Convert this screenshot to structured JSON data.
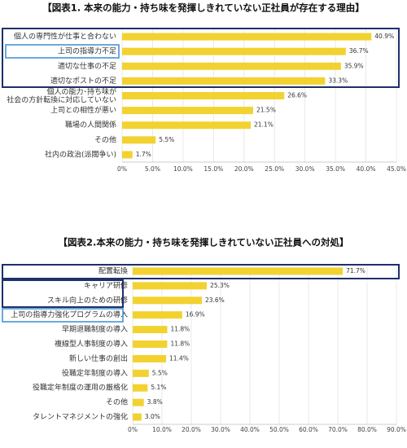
{
  "chart_data": [
    {
      "type": "bar",
      "orientation": "horizontal",
      "title": "【図表1. 本来の能力・持ち味を発揮しきれていない正社員が存在する理由】",
      "categories": [
        "個人の専門性が仕事と合わない",
        "上司の指導力不足",
        "適切な仕事の不足",
        "適切なポストの不足",
        "個人の能力･持ち味が\n社会の方針転換に対応していない",
        "上司との相性が悪い",
        "職場の人間関係",
        "その他",
        "社内の政治(派閥争い)"
      ],
      "values": [
        40.9,
        36.7,
        35.9,
        33.3,
        26.6,
        21.5,
        21.1,
        5.5,
        1.7
      ],
      "value_labels": [
        "40.9%",
        "36.7%",
        "35.9%",
        "33.3%",
        "26.6%",
        "21.5%",
        "21.1%",
        "5.5%",
        "1.7%"
      ],
      "color": "#f2d230",
      "xlim": [
        0,
        45
      ],
      "xticks": [
        {
          "value": 0,
          "label": "0%"
        },
        {
          "value": 5,
          "label": "5.0%"
        },
        {
          "value": 10,
          "label": "10.0%"
        },
        {
          "value": 15,
          "label": "15.0%"
        },
        {
          "value": 20,
          "label": "20.0%"
        },
        {
          "value": 25,
          "label": "25.0%"
        },
        {
          "value": 30,
          "label": "30.0%"
        },
        {
          "value": 35,
          "label": "35.0%"
        },
        {
          "value": 40,
          "label": "40.0%"
        },
        {
          "value": 45,
          "label": "45.0%"
        }
      ],
      "grid": true
    },
    {
      "type": "bar",
      "orientation": "horizontal",
      "title": "【図表2.本来の能力・持ち味を発揮しきれていない正社員への対処】",
      "categories": [
        "配置転換",
        "キャリア研修",
        "スキル向上のための研修",
        "上司の指導力強化プログラムの導入",
        "早期退職制度の導入",
        "複線型人事制度の導入",
        "新しい仕事の創出",
        "役職定年制度の導入",
        "役職定年制度の運用の厳格化",
        "その他",
        "タレントマネジメントの強化"
      ],
      "values": [
        71.7,
        25.3,
        23.6,
        16.9,
        11.8,
        11.8,
        11.4,
        5.5,
        5.1,
        3.8,
        3.0
      ],
      "value_labels": [
        "71.7%",
        "25.3%",
        "23.6%",
        "16.9%",
        "11.8%",
        "11.8%",
        "11.4%",
        "5.5%",
        "5.1%",
        "3.8%",
        "3.0%"
      ],
      "color": "#f2d230",
      "xlim": [
        0,
        90
      ],
      "xticks": [
        {
          "value": 0,
          "label": "0%"
        },
        {
          "value": 10,
          "label": "10.0%"
        },
        {
          "value": 20,
          "label": "20.0%"
        },
        {
          "value": 30,
          "label": "30.0%"
        },
        {
          "value": 40,
          "label": "40.0%"
        },
        {
          "value": 50,
          "label": "50.0%"
        },
        {
          "value": 60,
          "label": "60.0%"
        },
        {
          "value": 70,
          "label": "70.0%"
        },
        {
          "value": 80,
          "label": "80.0%"
        },
        {
          "value": 90,
          "label": "90.0%"
        }
      ],
      "grid": true
    }
  ]
}
